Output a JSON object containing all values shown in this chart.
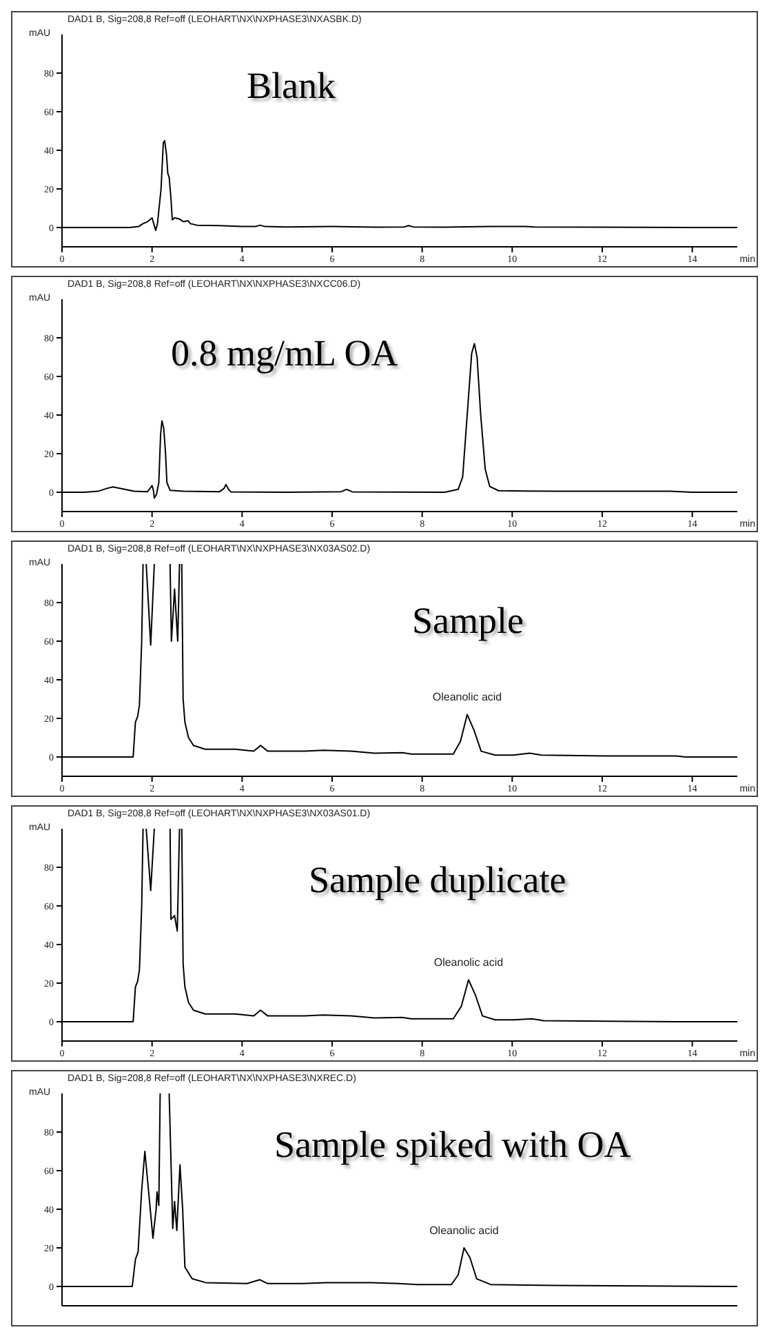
{
  "chart_data": [
    {
      "type": "line",
      "title": "Blank",
      "subtitle": "DAD1 B, Sig=208,8 Ref=off (LEOHART\\NX\\NXPHASE3\\NXASBK.D)",
      "ylabel": "mAU",
      "xlabel": "min",
      "xlim": [
        0,
        15
      ],
      "xticks": [
        0,
        2,
        4,
        6,
        8,
        10,
        12,
        14
      ],
      "ylim": [
        -10,
        100
      ],
      "yticks": [
        0,
        20,
        40,
        60,
        80
      ],
      "grid": false,
      "legend": false,
      "x": [
        0,
        1.5,
        1.7,
        1.8,
        1.9,
        2.0,
        2.05,
        2.08,
        2.12,
        2.2,
        2.25,
        2.28,
        2.32,
        2.35,
        2.38,
        2.42,
        2.45,
        2.5,
        2.6,
        2.7,
        2.8,
        2.85,
        3.0,
        3.5,
        4.0,
        4.3,
        4.4,
        4.5,
        5.0,
        6.0,
        7.0,
        7.6,
        7.7,
        7.8,
        8.5,
        9.5,
        10.3,
        10.5,
        12,
        14,
        15
      ],
      "series": [
        {
          "color": "#000000",
          "values": [
            0,
            0,
            0.5,
            2,
            3,
            5,
            1,
            -1.5,
            2,
            20,
            44,
            45,
            38,
            28,
            26,
            15,
            4,
            5,
            4.5,
            3,
            3.5,
            2,
            1.2,
            1,
            0.5,
            0.5,
            1.2,
            0.5,
            0.3,
            0.5,
            0.2,
            0.3,
            1,
            0.3,
            0.2,
            0.5,
            0.5,
            0.3,
            0.2,
            0,
            0
          ]
        }
      ]
    },
    {
      "type": "line",
      "title": "0.8 mg/mL OA",
      "subtitle": "DAD1 B, Sig=208,8 Ref=off (LEOHART\\NX\\NXPHASE3\\NXCC06.D)",
      "ylabel": "mAU",
      "xlabel": "min",
      "xlim": [
        0,
        15
      ],
      "xticks": [
        0,
        2,
        4,
        6,
        8,
        10,
        12,
        14
      ],
      "ylim": [
        -10,
        100
      ],
      "yticks": [
        0,
        20,
        40,
        60,
        80
      ],
      "grid": false,
      "legend": false,
      "x": [
        0,
        0.5,
        0.8,
        1.0,
        1.13,
        1.3,
        1.6,
        1.9,
        1.97,
        2.0,
        2.03,
        2.05,
        2.1,
        2.15,
        2.19,
        2.22,
        2.26,
        2.3,
        2.33,
        2.4,
        2.7,
        3.5,
        3.6,
        3.64,
        3.7,
        3.75,
        5,
        6.2,
        6.32,
        6.45,
        8.5,
        8.8,
        8.9,
        9.0,
        9.1,
        9.16,
        9.22,
        9.3,
        9.4,
        9.5,
        9.7,
        11,
        13.5,
        14,
        15
      ],
      "series": [
        {
          "color": "#000000",
          "values": [
            0,
            0,
            0.5,
            2,
            2.8,
            2,
            0.5,
            0.3,
            2.5,
            3.5,
            1,
            -3,
            -1,
            5,
            30,
            37,
            33,
            20,
            5,
            1,
            0.5,
            0.3,
            2,
            4,
            1.5,
            0.2,
            0,
            0.3,
            1.5,
            0.2,
            0,
            1.5,
            8,
            40,
            72,
            77,
            70,
            40,
            12,
            3,
            0.8,
            0.5,
            0.5,
            0,
            0
          ]
        }
      ]
    },
    {
      "type": "line",
      "title": "Sample",
      "subtitle": "DAD1 B, Sig=208,8 Ref=off (LEOHART\\NX\\NXPHASE3\\NX03AS02.D)",
      "ylabel": "mAU",
      "xlabel": "min",
      "xlim": [
        0,
        15
      ],
      "xticks": [
        0,
        2,
        4,
        6,
        8,
        10,
        12,
        14
      ],
      "ylim": [
        -10,
        100
      ],
      "yticks": [
        0,
        20,
        40,
        60,
        80
      ],
      "grid": false,
      "legend": false,
      "annotations": [
        {
          "text": "Oleanolic acid",
          "x": 9.0,
          "y": 22
        }
      ],
      "x": [
        0,
        1.58,
        1.63,
        1.68,
        1.72,
        1.77,
        1.8,
        1.82,
        1.87,
        1.97,
        2.05,
        2.2,
        2.4,
        2.43,
        2.5,
        2.57,
        2.61,
        2.63,
        2.66,
        2.69,
        2.73,
        2.81,
        2.92,
        3.18,
        3.85,
        4.26,
        4.41,
        4.57,
        5.39,
        5.8,
        6.42,
        6.94,
        7.56,
        7.76,
        8.69,
        8.85,
        9.0,
        9.15,
        9.31,
        9.62,
        10.03,
        10.39,
        10.65,
        12.09,
        13.64,
        13.85,
        15
      ],
      "series": [
        {
          "color": "#000000",
          "values": [
            0,
            0,
            18,
            21,
            27,
            60,
            100,
            null,
            100,
            58,
            100,
            null,
            100,
            60,
            87,
            60,
            100,
            null,
            100,
            30,
            18,
            10,
            6,
            4,
            4,
            3,
            6,
            3,
            3,
            3.5,
            3,
            2,
            2.2,
            1.5,
            1.5,
            8,
            22,
            14,
            3,
            1,
            1,
            2,
            1,
            0.5,
            0.5,
            0,
            0
          ]
        }
      ]
    },
    {
      "type": "line",
      "title": "Sample duplicate",
      "subtitle": "DAD1 B, Sig=208,8 Ref=off (LEOHART\\NX\\NXPHASE3\\NX03AS01.D)",
      "ylabel": "mAU",
      "xlabel": "min",
      "xlim": [
        0,
        15
      ],
      "xticks": [
        0,
        2,
        4,
        6,
        8,
        10,
        12,
        14
      ],
      "ylim": [
        -10,
        100
      ],
      "yticks": [
        0,
        20,
        40,
        60,
        80
      ],
      "grid": false,
      "legend": false,
      "annotations": [
        {
          "text": "Oleanolic acid",
          "x": 9.03,
          "y": 21.7
        }
      ],
      "x": [
        0,
        1.58,
        1.63,
        1.68,
        1.72,
        1.77,
        1.8,
        1.82,
        1.87,
        1.97,
        2.05,
        2.2,
        2.4,
        2.42,
        2.5,
        2.56,
        2.61,
        2.63,
        2.66,
        2.69,
        2.73,
        2.81,
        2.92,
        3.18,
        3.85,
        4.26,
        4.41,
        4.57,
        5.39,
        5.8,
        6.42,
        6.94,
        7.56,
        7.76,
        8.69,
        8.87,
        9.03,
        9.18,
        9.34,
        9.62,
        10.03,
        10.44,
        10.7,
        12.09,
        13.64,
        13.85,
        15
      ],
      "series": [
        {
          "color": "#000000",
          "values": [
            0,
            0,
            18,
            21,
            27,
            60,
            100,
            null,
            100,
            68,
            100,
            null,
            100,
            53,
            55,
            47,
            100,
            null,
            100,
            30,
            18,
            10,
            6,
            4,
            4,
            3,
            6,
            3,
            3,
            3.5,
            3,
            2,
            2.2,
            1.5,
            1.5,
            8,
            21.7,
            14,
            3,
            1,
            1,
            1.5,
            0.5,
            0.3,
            0,
            0,
            0
          ]
        }
      ]
    },
    {
      "type": "line",
      "title": "Sample spiked with OA",
      "subtitle": "DAD1 B, Sig=208,8 Ref=off (LEOHART\\NX\\NXPHASE3\\NXREC.D)",
      "ylabel": "mAU",
      "xlim": [
        0,
        15
      ],
      "xticks": [
        0,
        2,
        4,
        6,
        8,
        10,
        12,
        14
      ],
      "ylim": [
        -10,
        100
      ],
      "yticks": [
        0,
        20,
        40,
        60,
        80
      ],
      "grid": false,
      "legend": false,
      "tick_labels": "y",
      "annotations": [
        {
          "text": "Oleanolic acid",
          "x": 8.93,
          "y": 20
        }
      ],
      "x": [
        0,
        1.56,
        1.63,
        1.69,
        1.77,
        1.84,
        1.92,
        2.02,
        2.09,
        2.11,
        2.15,
        2.18,
        2.3,
        2.38,
        2.46,
        2.5,
        2.55,
        2.62,
        2.68,
        2.73,
        2.89,
        3.19,
        4.11,
        4.39,
        4.57,
        5.34,
        5.85,
        6.87,
        7.48,
        7.89,
        8.65,
        8.8,
        8.93,
        9.06,
        9.21,
        9.52,
        10.95,
        15
      ],
      "series": [
        {
          "color": "#000000",
          "values": [
            0,
            0,
            14,
            18,
            50,
            70,
            50,
            25,
            40,
            49,
            42,
            100,
            null,
            100,
            30,
            44,
            29,
            63,
            40,
            10,
            4,
            2,
            1.5,
            3.5,
            1.5,
            1.5,
            2,
            2,
            1.5,
            1,
            1,
            6,
            20,
            15,
            4,
            1,
            0.5,
            0
          ]
        }
      ]
    }
  ]
}
